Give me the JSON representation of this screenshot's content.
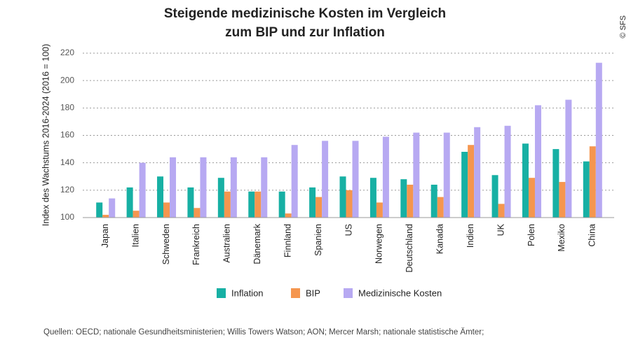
{
  "chart_data": {
    "type": "bar",
    "title": [
      "Steigende medizinische Kosten im Vergleich",
      "zum BIP und zur Inflation"
    ],
    "credit": "© SFS",
    "y_label": "Index des Wachstums 2016-2024 (2016 = 100)",
    "source": "Quellen: OECD; nationale Gesundheitsministerien; Willis Towers Watson; AON; Mercer Marsh; nationale statistische Ämter;",
    "categories": [
      "Japan",
      "Italien",
      "Schweden",
      "Frankreich",
      "Australien",
      "Dänemark",
      "Finnland",
      "Spanien",
      "US",
      "Norwegen",
      "Deutschland",
      "Kanada",
      "Indien",
      "UK",
      "Polen",
      "Mexiko",
      "China"
    ],
    "series": [
      {
        "name": "Inflation",
        "color": "#17b0a4",
        "values": [
          111,
          122,
          130,
          122,
          129,
          119,
          119,
          122,
          130,
          129,
          128,
          124,
          148,
          131,
          154,
          150,
          141
        ]
      },
      {
        "name": "BIP",
        "color": "#f5964f",
        "values": [
          102,
          105,
          111,
          107,
          119,
          119,
          103,
          115,
          120,
          111,
          124,
          115,
          153,
          110,
          129,
          126,
          152
        ]
      },
      {
        "name": "Medizinische Kosten",
        "color": "#b7a9f2",
        "values": [
          114,
          140,
          144,
          144,
          144,
          144,
          153,
          156,
          156,
          159,
          162,
          162,
          166,
          167,
          182,
          186,
          213
        ]
      }
    ],
    "ylim": [
      100,
      220
    ],
    "yticks": [
      100,
      120,
      140,
      160,
      180,
      200,
      220
    ],
    "grid": true
  }
}
